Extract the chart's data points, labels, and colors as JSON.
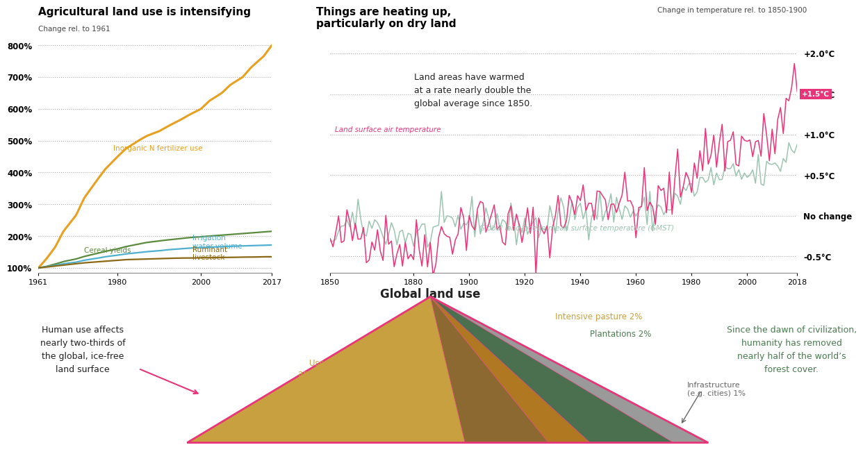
{
  "bg_color": "#ffffff",
  "left_chart": {
    "title": "Agricultural land use is intensifying",
    "subtitle": "Change rel. to 1961",
    "years": [
      1961,
      1963,
      1965,
      1967,
      1970,
      1972,
      1975,
      1977,
      1980,
      1982,
      1985,
      1987,
      1990,
      1992,
      1995,
      1997,
      2000,
      2002,
      2005,
      2007,
      2010,
      2012,
      2015,
      2017
    ],
    "fertilizer": [
      100,
      130,
      165,
      215,
      265,
      320,
      375,
      410,
      450,
      475,
      500,
      515,
      530,
      545,
      565,
      580,
      600,
      625,
      650,
      675,
      700,
      730,
      765,
      800
    ],
    "cereal": [
      100,
      105,
      112,
      120,
      128,
      136,
      145,
      152,
      160,
      167,
      175,
      180,
      185,
      188,
      192,
      195,
      198,
      200,
      203,
      205,
      208,
      210,
      213,
      215
    ],
    "irrigation": [
      100,
      104,
      108,
      113,
      118,
      124,
      130,
      135,
      140,
      144,
      148,
      151,
      154,
      157,
      160,
      162,
      164,
      165,
      167,
      168,
      169,
      170,
      171,
      172
    ],
    "ruminant": [
      100,
      103,
      106,
      109,
      113,
      116,
      119,
      121,
      124,
      126,
      127,
      128,
      129,
      130,
      131,
      131,
      132,
      132,
      133,
      133,
      134,
      134,
      135,
      135
    ],
    "fertilizer_color": "#E8A020",
    "cereal_color": "#5A8A3C",
    "irrigation_color": "#4EB0D0",
    "ruminant_color": "#8B6914",
    "yticks": [
      100,
      200,
      300,
      400,
      500,
      600,
      700,
      800
    ],
    "xticks": [
      1961,
      1980,
      2000,
      2017
    ]
  },
  "right_chart": {
    "title": "Things are heating up,\nparticularly on dry land",
    "subtitle": "Change in temperature rel. to 1850-1900",
    "land_label": "Land surface air temperature",
    "gmst_label": "Global land–ocean mean surface temperature (GMST)",
    "land_color": "#E8357A",
    "gmst_color": "#9DC4B0",
    "yticks_labels": [
      "+2.0°C",
      "+1.5°C",
      "+1.0°C",
      "+0.5°C",
      "No change",
      "-0.5°C"
    ],
    "yticks_vals": [
      2.0,
      1.5,
      1.0,
      0.5,
      0.0,
      -0.5
    ],
    "xticks": [
      1850,
      1880,
      1900,
      1920,
      1940,
      1960,
      1980,
      2000,
      2018
    ],
    "annotation_box": "+1.5°C",
    "annotation_color": "#E8357A",
    "land_note": "Land areas have warmed\nat a rate nearly double the\nglobal average since 1850."
  },
  "bottom": {
    "title": "Global land use",
    "left_text": "Human use affects\nnearly two-thirds of\nthe global, ice-free\nland surface",
    "right_text": "Since the dawn of civilization,\nhumanity has removed\nnearly half of the world’s\nforest cover.",
    "savanna_label": "Used savannas\nand shrublands 16%",
    "pasture_label": "Intensive pasture 2%",
    "plantation_label": "Plantations 2%",
    "infra_label": "Infrastructure\n(e.g. cities) 1%",
    "savanna_color": "#C8A040",
    "savanna_color2": "#D4A830",
    "pasture_color": "#B07820",
    "cropland_color": "#8B6930",
    "plantation_color": "#4A7050",
    "infra_color": "#9A9A9A",
    "outline_color": "#E8357A",
    "text_color_green": "#4A7A50",
    "text_color_brown": "#C8A040"
  }
}
